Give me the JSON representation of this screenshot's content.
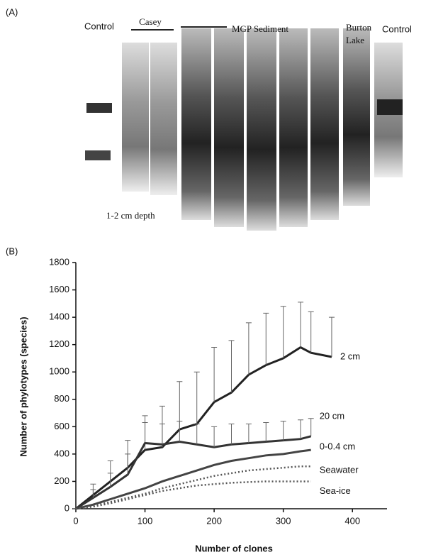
{
  "panel_a": {
    "label": "(A)",
    "lanes": [
      "Control",
      "Casey",
      "MGP Sediment",
      "Control"
    ],
    "burton_lake": [
      "Burton",
      "Lake"
    ],
    "depth": "1-2 cm depth"
  },
  "chart_data": {
    "type": "line",
    "panel_label": "(B)",
    "x_label": "Number of clones",
    "y_label": "Number of phylotypes (species)",
    "x": [
      0,
      25,
      50,
      75,
      100,
      125,
      150,
      175,
      200,
      225,
      250,
      275,
      300,
      325,
      340,
      370
    ],
    "series": [
      {
        "name": "2 cm",
        "color": "#222222",
        "style": "solid",
        "values": [
          0,
          100,
          200,
          300,
          430,
          450,
          580,
          620,
          780,
          850,
          980,
          1050,
          1100,
          1180,
          1140,
          1110
        ],
        "errors": [
          0,
          80,
          150,
          200,
          250,
          300,
          350,
          380,
          400,
          380,
          380,
          380,
          380,
          330,
          300,
          290
        ]
      },
      {
        "name": "20 cm",
        "color": "#333333",
        "style": "solid",
        "values": [
          0,
          80,
          160,
          250,
          480,
          470,
          490,
          470,
          450,
          470,
          480,
          490,
          500,
          510,
          530,
          null
        ],
        "errors": [
          0,
          60,
          100,
          150,
          150,
          150,
          150,
          150,
          150,
          150,
          140,
          140,
          140,
          140,
          130,
          null
        ]
      },
      {
        "name": "0-0.4 cm",
        "color": "#444444",
        "style": "solid",
        "values": [
          0,
          30,
          70,
          110,
          150,
          200,
          240,
          280,
          320,
          350,
          370,
          390,
          400,
          420,
          430,
          null
        ]
      },
      {
        "name": "Seawater",
        "color": "#555555",
        "style": "dotted",
        "values": [
          0,
          20,
          50,
          80,
          110,
          150,
          180,
          210,
          240,
          260,
          280,
          290,
          300,
          310,
          310,
          null
        ]
      },
      {
        "name": "Sea-ice",
        "color": "#555555",
        "style": "dotted",
        "values": [
          0,
          15,
          40,
          70,
          100,
          130,
          150,
          170,
          180,
          190,
          195,
          200,
          200,
          200,
          200,
          null
        ]
      }
    ],
    "xlim": [
      0,
      450
    ],
    "xticks": [
      0,
      100,
      200,
      300,
      400
    ],
    "ylim": [
      0,
      1800
    ],
    "yticks": [
      0,
      200,
      400,
      600,
      800,
      1000,
      1200,
      1400,
      1600,
      1800
    ]
  }
}
